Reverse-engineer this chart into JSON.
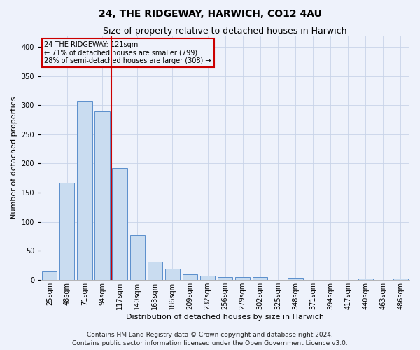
{
  "title": "24, THE RIDGEWAY, HARWICH, CO12 4AU",
  "subtitle": "Size of property relative to detached houses in Harwich",
  "xlabel": "Distribution of detached houses by size in Harwich",
  "ylabel": "Number of detached properties",
  "categories": [
    "25sqm",
    "48sqm",
    "71sqm",
    "94sqm",
    "117sqm",
    "140sqm",
    "163sqm",
    "186sqm",
    "209sqm",
    "232sqm",
    "256sqm",
    "279sqm",
    "302sqm",
    "325sqm",
    "348sqm",
    "371sqm",
    "394sqm",
    "417sqm",
    "440sqm",
    "463sqm",
    "486sqm"
  ],
  "values": [
    15,
    167,
    307,
    290,
    192,
    77,
    31,
    19,
    9,
    7,
    4,
    4,
    5,
    0,
    3,
    0,
    0,
    0,
    2,
    0,
    2
  ],
  "bar_color": "#c9dcf0",
  "bar_edge_color": "#5b8fcc",
  "grid_color": "#c8d4e8",
  "vline_pos": 3.5,
  "vline_color": "#cc0000",
  "annotation_line1": "24 THE RIDGEWAY: 121sqm",
  "annotation_line2": "← 71% of detached houses are smaller (799)",
  "annotation_line3": "28% of semi-detached houses are larger (308) →",
  "annotation_box_color": "#cc0000",
  "footer_line1": "Contains HM Land Registry data © Crown copyright and database right 2024.",
  "footer_line2": "Contains public sector information licensed under the Open Government Licence v3.0.",
  "ylim": [
    0,
    420
  ],
  "yticks": [
    0,
    50,
    100,
    150,
    200,
    250,
    300,
    350,
    400
  ],
  "title_fontsize": 10,
  "subtitle_fontsize": 9,
  "axis_label_fontsize": 8,
  "tick_fontsize": 7,
  "annotation_fontsize": 7,
  "footer_fontsize": 6.5,
  "background_color": "#eef2fb"
}
